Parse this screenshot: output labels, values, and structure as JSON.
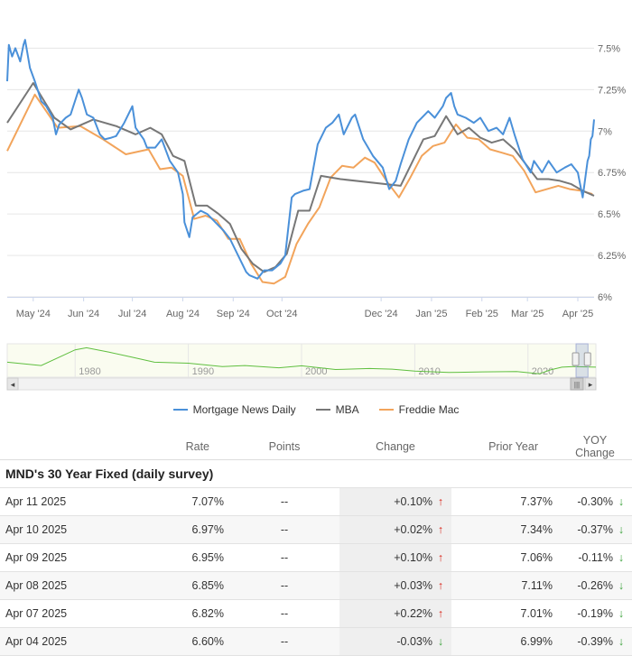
{
  "chart_data": {
    "type": "line",
    "ylim": [
      6,
      7.6
    ],
    "y_ticks": [
      "7.5%",
      "7.25%",
      "7%",
      "6.75%",
      "6.5%",
      "6.25%",
      "6%"
    ],
    "y_tick_values": [
      7.5,
      7.25,
      7.0,
      6.75,
      6.5,
      6.25,
      6.0
    ],
    "x_ticks": [
      "May '24",
      "Jun '24",
      "Jul '24",
      "Aug '24",
      "Sep '24",
      "Oct '24",
      "Dec '24",
      "Jan '25",
      "Feb '25",
      "Mar '25",
      "Apr '25"
    ],
    "x_range": [
      "2024-04-15",
      "2025-04-11"
    ],
    "series": [
      {
        "name": "Mortgage News Daily",
        "color": "#4a90d9",
        "points": [
          [
            "2024-04-15",
            7.3
          ],
          [
            "2024-04-16",
            7.52
          ],
          [
            "2024-04-18",
            7.45
          ],
          [
            "2024-04-20",
            7.5
          ],
          [
            "2024-04-23",
            7.42
          ],
          [
            "2024-04-25",
            7.52
          ],
          [
            "2024-04-26",
            7.55
          ],
          [
            "2024-04-29",
            7.38
          ],
          [
            "2024-05-02",
            7.3
          ],
          [
            "2024-05-06",
            7.18
          ],
          [
            "2024-05-09",
            7.15
          ],
          [
            "2024-05-13",
            7.08
          ],
          [
            "2024-05-15",
            6.98
          ],
          [
            "2024-05-17",
            7.04
          ],
          [
            "2024-05-21",
            7.08
          ],
          [
            "2024-05-24",
            7.1
          ],
          [
            "2024-05-29",
            7.25
          ],
          [
            "2024-05-31",
            7.2
          ],
          [
            "2024-06-03",
            7.1
          ],
          [
            "2024-06-07",
            7.08
          ],
          [
            "2024-06-11",
            6.98
          ],
          [
            "2024-06-14",
            6.95
          ],
          [
            "2024-06-18",
            6.96
          ],
          [
            "2024-06-21",
            6.97
          ],
          [
            "2024-06-26",
            7.05
          ],
          [
            "2024-07-01",
            7.15
          ],
          [
            "2024-07-03",
            7.02
          ],
          [
            "2024-07-08",
            6.95
          ],
          [
            "2024-07-10",
            6.9
          ],
          [
            "2024-07-15",
            6.9
          ],
          [
            "2024-07-19",
            6.95
          ],
          [
            "2024-07-24",
            6.82
          ],
          [
            "2024-07-29",
            6.75
          ],
          [
            "2024-08-01",
            6.62
          ],
          [
            "2024-08-02",
            6.45
          ],
          [
            "2024-08-05",
            6.36
          ],
          [
            "2024-08-07",
            6.48
          ],
          [
            "2024-08-12",
            6.52
          ],
          [
            "2024-08-16",
            6.5
          ],
          [
            "2024-08-21",
            6.45
          ],
          [
            "2024-08-26",
            6.4
          ],
          [
            "2024-08-30",
            6.35
          ],
          [
            "2024-09-04",
            6.25
          ],
          [
            "2024-09-09",
            6.15
          ],
          [
            "2024-09-11",
            6.13
          ],
          [
            "2024-09-16",
            6.11
          ],
          [
            "2024-09-20",
            6.16
          ],
          [
            "2024-09-25",
            6.16
          ],
          [
            "2024-09-30",
            6.2
          ],
          [
            "2024-10-03",
            6.25
          ],
          [
            "2024-10-07",
            6.6
          ],
          [
            "2024-10-09",
            6.62
          ],
          [
            "2024-10-14",
            6.64
          ],
          [
            "2024-10-18",
            6.65
          ],
          [
            "2024-10-23",
            6.92
          ],
          [
            "2024-10-28",
            7.02
          ],
          [
            "2024-11-01",
            7.05
          ],
          [
            "2024-11-05",
            7.1
          ],
          [
            "2024-11-08",
            6.98
          ],
          [
            "2024-11-13",
            7.08
          ],
          [
            "2024-11-15",
            7.1
          ],
          [
            "2024-11-20",
            6.95
          ],
          [
            "2024-11-26",
            6.85
          ],
          [
            "2024-12-02",
            6.78
          ],
          [
            "2024-12-06",
            6.65
          ],
          [
            "2024-12-10",
            6.7
          ],
          [
            "2024-12-13",
            6.8
          ],
          [
            "2024-12-18",
            6.95
          ],
          [
            "2024-12-23",
            7.05
          ],
          [
            "2024-12-30",
            7.12
          ],
          [
            "2025-01-03",
            7.08
          ],
          [
            "2025-01-08",
            7.15
          ],
          [
            "2025-01-10",
            7.2
          ],
          [
            "2025-01-13",
            7.23
          ],
          [
            "2025-01-15",
            7.15
          ],
          [
            "2025-01-17",
            7.1
          ],
          [
            "2025-01-22",
            7.08
          ],
          [
            "2025-01-27",
            7.05
          ],
          [
            "2025-01-31",
            7.08
          ],
          [
            "2025-02-05",
            7.0
          ],
          [
            "2025-02-10",
            7.02
          ],
          [
            "2025-02-14",
            6.98
          ],
          [
            "2025-02-18",
            7.08
          ],
          [
            "2025-02-21",
            6.98
          ],
          [
            "2025-02-26",
            6.83
          ],
          [
            "2025-03-03",
            6.75
          ],
          [
            "2025-03-05",
            6.82
          ],
          [
            "2025-03-10",
            6.75
          ],
          [
            "2025-03-14",
            6.82
          ],
          [
            "2025-03-19",
            6.75
          ],
          [
            "2025-03-24",
            6.78
          ],
          [
            "2025-03-28",
            6.8
          ],
          [
            "2025-04-01",
            6.75
          ],
          [
            "2025-04-04",
            6.6
          ],
          [
            "2025-04-07",
            6.82
          ],
          [
            "2025-04-08",
            6.85
          ],
          [
            "2025-04-09",
            6.95
          ],
          [
            "2025-04-10",
            6.97
          ],
          [
            "2025-04-11",
            7.07
          ]
        ]
      },
      {
        "name": "MBA",
        "color": "#777777",
        "points": [
          [
            "2024-04-15",
            7.05
          ],
          [
            "2024-05-01",
            7.29
          ],
          [
            "2024-05-14",
            7.08
          ],
          [
            "2024-05-24",
            7.01
          ],
          [
            "2024-06-07",
            7.07
          ],
          [
            "2024-06-21",
            7.03
          ],
          [
            "2024-07-03",
            6.98
          ],
          [
            "2024-07-12",
            7.02
          ],
          [
            "2024-07-19",
            6.98
          ],
          [
            "2024-07-26",
            6.85
          ],
          [
            "2024-08-02",
            6.82
          ],
          [
            "2024-08-09",
            6.55
          ],
          [
            "2024-08-16",
            6.55
          ],
          [
            "2024-08-23",
            6.5
          ],
          [
            "2024-08-30",
            6.44
          ],
          [
            "2024-09-06",
            6.29
          ],
          [
            "2024-09-13",
            6.2
          ],
          [
            "2024-09-20",
            6.15
          ],
          [
            "2024-09-27",
            6.18
          ],
          [
            "2024-10-04",
            6.26
          ],
          [
            "2024-10-11",
            6.52
          ],
          [
            "2024-10-18",
            6.52
          ],
          [
            "2024-10-25",
            6.73
          ],
          [
            "2024-11-06",
            6.71
          ],
          [
            "2024-12-13",
            6.67
          ],
          [
            "2024-12-27",
            6.95
          ],
          [
            "2025-01-03",
            6.97
          ],
          [
            "2025-01-10",
            7.09
          ],
          [
            "2025-01-17",
            6.98
          ],
          [
            "2025-01-24",
            7.02
          ],
          [
            "2025-01-31",
            6.96
          ],
          [
            "2025-02-07",
            6.93
          ],
          [
            "2025-02-14",
            6.95
          ],
          [
            "2025-02-21",
            6.89
          ],
          [
            "2025-02-28",
            6.8
          ],
          [
            "2025-03-07",
            6.71
          ],
          [
            "2025-03-14",
            6.71
          ],
          [
            "2025-03-21",
            6.7
          ],
          [
            "2025-03-28",
            6.68
          ],
          [
            "2025-04-04",
            6.64
          ],
          [
            "2025-04-11",
            6.61
          ]
        ]
      },
      {
        "name": "Freddie Mac",
        "color": "#f2a45b",
        "points": [
          [
            "2024-04-15",
            6.88
          ],
          [
            "2024-05-02",
            7.22
          ],
          [
            "2024-05-16",
            7.02
          ],
          [
            "2024-05-30",
            7.03
          ],
          [
            "2024-06-13",
            6.95
          ],
          [
            "2024-06-27",
            6.86
          ],
          [
            "2024-07-11",
            6.89
          ],
          [
            "2024-07-18",
            6.77
          ],
          [
            "2024-07-25",
            6.78
          ],
          [
            "2024-08-01",
            6.73
          ],
          [
            "2024-08-08",
            6.47
          ],
          [
            "2024-08-15",
            6.49
          ],
          [
            "2024-08-22",
            6.46
          ],
          [
            "2024-08-29",
            6.35
          ],
          [
            "2024-09-05",
            6.35
          ],
          [
            "2024-09-12",
            6.2
          ],
          [
            "2024-09-19",
            6.09
          ],
          [
            "2024-09-26",
            6.08
          ],
          [
            "2024-10-03",
            6.12
          ],
          [
            "2024-10-10",
            6.32
          ],
          [
            "2024-10-17",
            6.44
          ],
          [
            "2024-10-24",
            6.54
          ],
          [
            "2024-10-31",
            6.72
          ],
          [
            "2024-11-07",
            6.79
          ],
          [
            "2024-11-14",
            6.78
          ],
          [
            "2024-11-21",
            6.84
          ],
          [
            "2024-11-27",
            6.81
          ],
          [
            "2024-12-05",
            6.69
          ],
          [
            "2024-12-12",
            6.6
          ],
          [
            "2024-12-19",
            6.72
          ],
          [
            "2024-12-26",
            6.85
          ],
          [
            "2025-01-02",
            6.91
          ],
          [
            "2025-01-09",
            6.93
          ],
          [
            "2025-01-16",
            7.04
          ],
          [
            "2025-01-23",
            6.96
          ],
          [
            "2025-01-30",
            6.95
          ],
          [
            "2025-02-06",
            6.89
          ],
          [
            "2025-02-13",
            6.87
          ],
          [
            "2025-02-20",
            6.85
          ],
          [
            "2025-02-27",
            6.76
          ],
          [
            "2025-03-06",
            6.63
          ],
          [
            "2025-03-13",
            6.65
          ],
          [
            "2025-03-20",
            6.67
          ],
          [
            "2025-03-27",
            6.65
          ],
          [
            "2025-04-03",
            6.64
          ],
          [
            "2025-04-10",
            6.62
          ]
        ]
      }
    ],
    "navigator": {
      "labels": [
        "1980",
        "1990",
        "2000",
        "2010",
        "2020"
      ],
      "years": [
        1980,
        1990,
        2000,
        2010,
        2020
      ],
      "range": [
        1974,
        2026
      ]
    }
  },
  "legend": [
    "Mortgage News Daily",
    "MBA",
    "Freddie Mac"
  ],
  "table": {
    "headers": {
      "rate": "Rate",
      "points": "Points",
      "change": "Change",
      "prior_year": "Prior Year",
      "yoy_change": "YOY Change"
    },
    "section_title": "MND's 30 Year Fixed (daily survey)",
    "rows": [
      {
        "date": "Apr 11 2025",
        "rate": "7.07%",
        "points": "--",
        "change": "+0.10%",
        "change_dir": "up",
        "prior_year": "7.37%",
        "yoy": "-0.30%",
        "yoy_dir": "down"
      },
      {
        "date": "Apr 10 2025",
        "rate": "6.97%",
        "points": "--",
        "change": "+0.02%",
        "change_dir": "up",
        "prior_year": "7.34%",
        "yoy": "-0.37%",
        "yoy_dir": "down"
      },
      {
        "date": "Apr 09 2025",
        "rate": "6.95%",
        "points": "--",
        "change": "+0.10%",
        "change_dir": "up",
        "prior_year": "7.06%",
        "yoy": "-0.11%",
        "yoy_dir": "down"
      },
      {
        "date": "Apr 08 2025",
        "rate": "6.85%",
        "points": "--",
        "change": "+0.03%",
        "change_dir": "up",
        "prior_year": "7.11%",
        "yoy": "-0.26%",
        "yoy_dir": "down"
      },
      {
        "date": "Apr 07 2025",
        "rate": "6.82%",
        "points": "--",
        "change": "+0.22%",
        "change_dir": "up",
        "prior_year": "7.01%",
        "yoy": "-0.19%",
        "yoy_dir": "down"
      },
      {
        "date": "Apr 04 2025",
        "rate": "6.60%",
        "points": "--",
        "change": "-0.03%",
        "change_dir": "down",
        "prior_year": "6.99%",
        "yoy": "-0.39%",
        "yoy_dir": "down"
      }
    ]
  }
}
